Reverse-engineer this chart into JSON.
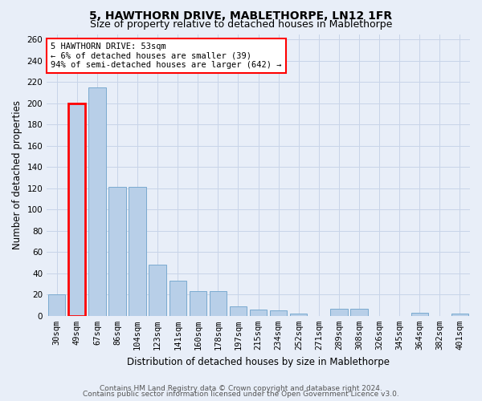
{
  "title": "5, HAWTHORN DRIVE, MABLETHORPE, LN12 1FR",
  "subtitle": "Size of property relative to detached houses in Mablethorpe",
  "xlabel": "Distribution of detached houses by size in Mablethorpe",
  "ylabel": "Number of detached properties",
  "categories": [
    "30sqm",
    "49sqm",
    "67sqm",
    "86sqm",
    "104sqm",
    "123sqm",
    "141sqm",
    "160sqm",
    "178sqm",
    "197sqm",
    "215sqm",
    "234sqm",
    "252sqm",
    "271sqm",
    "289sqm",
    "308sqm",
    "326sqm",
    "345sqm",
    "364sqm",
    "382sqm",
    "401sqm"
  ],
  "values": [
    20,
    200,
    215,
    121,
    121,
    48,
    33,
    23,
    23,
    9,
    6,
    5,
    2,
    0,
    7,
    7,
    0,
    0,
    3,
    0,
    2
  ],
  "bar_color": "#b8cfe8",
  "bar_edge_color": "#7aaad0",
  "property_bar_index": 1,
  "annotation_text": "5 HAWTHORN DRIVE: 53sqm\n← 6% of detached houses are smaller (39)\n94% of semi-detached houses are larger (642) →",
  "annotation_box_color": "white",
  "annotation_box_edge_color": "red",
  "ylim": [
    0,
    265
  ],
  "yticks": [
    0,
    20,
    40,
    60,
    80,
    100,
    120,
    140,
    160,
    180,
    200,
    220,
    240,
    260
  ],
  "grid_color": "#c8d4e8",
  "background_color": "#e8eef8",
  "footer_line1": "Contains HM Land Registry data © Crown copyright and database right 2024.",
  "footer_line2": "Contains public sector information licensed under the Open Government Licence v3.0.",
  "title_fontsize": 10,
  "subtitle_fontsize": 9,
  "axis_label_fontsize": 8.5,
  "tick_fontsize": 7.5,
  "annotation_fontsize": 7.5,
  "footer_fontsize": 6.5
}
